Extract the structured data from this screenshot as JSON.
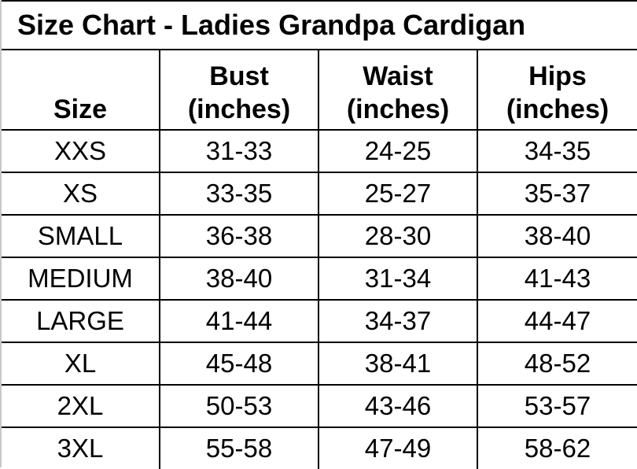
{
  "title": "Size Chart - Ladies Grandpa Cardigan",
  "headers": [
    {
      "line1": "",
      "line2": "Size"
    },
    {
      "line1": "Bust",
      "line2": "(inches)"
    },
    {
      "line1": "Waist",
      "line2": "(inches)"
    },
    {
      "line1": "Hips",
      "line2": "(inches)"
    }
  ],
  "rows": [
    [
      "XXS",
      "31-33",
      "24-25",
      "34-35"
    ],
    [
      "XS",
      "33-35",
      "25-27",
      "35-37"
    ],
    [
      "SMALL",
      "36-38",
      "28-30",
      "38-40"
    ],
    [
      "MEDIUM",
      "38-40",
      "31-34",
      "41-43"
    ],
    [
      "LARGE",
      "41-44",
      "34-37",
      "44-47"
    ],
    [
      "XL",
      "45-48",
      "38-41",
      "48-52"
    ],
    [
      "2XL",
      "50-53",
      "43-46",
      "53-57"
    ],
    [
      "3XL",
      "55-58",
      "47-49",
      "58-62"
    ]
  ]
}
